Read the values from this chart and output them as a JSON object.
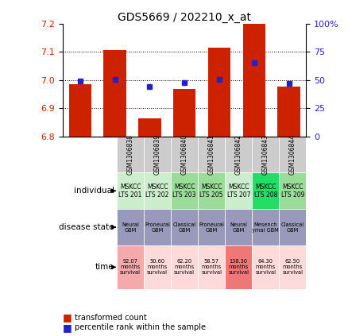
{
  "title": "GDS5669 / 202210_x_at",
  "samples": [
    "GSM1306838",
    "GSM1306839",
    "GSM1306840",
    "GSM1306841",
    "GSM1306842",
    "GSM1306843",
    "GSM1306844"
  ],
  "bar_values": [
    6.985,
    7.105,
    6.865,
    6.968,
    7.115,
    7.2,
    6.975
  ],
  "dot_values": [
    6.995,
    7.002,
    6.977,
    6.99,
    7.002,
    7.06,
    6.988
  ],
  "ylim": [
    6.8,
    7.2
  ],
  "y2lim": [
    0,
    100
  ],
  "yticks": [
    6.8,
    6.9,
    7.0,
    7.1,
    7.2
  ],
  "y2ticks": [
    0,
    25,
    50,
    75,
    100
  ],
  "bar_color": "#cc2200",
  "dot_color": "#2222cc",
  "individual_labels": [
    "MSKCC\nLTS 201",
    "MSKCC\nLTS 202",
    "MSKCC\nLTS 203",
    "MSKCC\nLTS 205",
    "MSKCC\nLTS 207",
    "MSKCC\nLTS 208",
    "MSKCC\nLTS 209"
  ],
  "individual_colors": [
    "#cceecc",
    "#cceecc",
    "#99dd99",
    "#99dd99",
    "#cceecc",
    "#22dd66",
    "#99dd99"
  ],
  "disease_labels": [
    "Neural\nGBM",
    "Proneural\nGBM",
    "Classical\nGBM",
    "Proneural\nGBM",
    "Neural\nGBM",
    "Mesench\nymal GBM",
    "Classical\nGBM"
  ],
  "disease_colors": [
    "#9999bb",
    "#9999bb",
    "#9999bb",
    "#9999bb",
    "#9999bb",
    "#9999bb",
    "#9999bb"
  ],
  "time_labels": [
    "92.07\nmonths\nsurvival",
    "50.60\nmonths\nsurvival",
    "62.20\nmonths\nsurvival",
    "58.57\nmonths\nsurvival",
    "138.30\nmonths\nsurvival",
    "64.30\nmonths\nsurvival",
    "62.50\nmonths\nsurvival"
  ],
  "time_colors": [
    "#f4aaaa",
    "#ffdada",
    "#ffdada",
    "#ffdada",
    "#ee7777",
    "#ffdada",
    "#ffdada"
  ],
  "legend_bar_label": "transformed count",
  "legend_dot_label": "percentile rank within the sample",
  "row_label_names": [
    "individual",
    "disease state",
    "time"
  ],
  "sample_bg_color": "#cccccc",
  "bar_bottom": 6.8
}
